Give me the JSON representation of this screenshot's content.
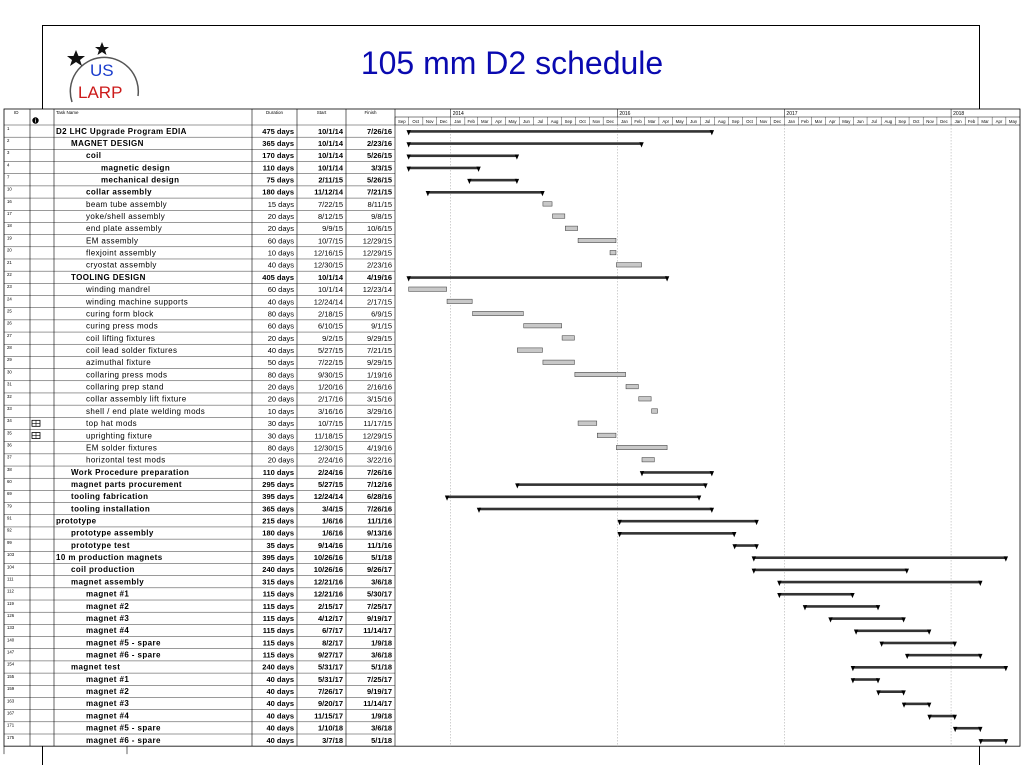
{
  "title": "105 mm D2 schedule",
  "logo": {
    "top": "US",
    "bottom": "LARP"
  },
  "headers": {
    "id": "ID",
    "info": "i",
    "name": "Task Name",
    "duration": "Duration",
    "start": "Start",
    "finish": "Finish"
  },
  "years": [
    "2014",
    "2016",
    "2017",
    "2018"
  ],
  "months": [
    "Sep",
    "Oct",
    "Nov",
    "Dec",
    "Jan",
    "Feb",
    "Mar",
    "Apr",
    "May",
    "Jun",
    "Jul",
    "Aug",
    "Sep",
    "Oct",
    "Nov",
    "Dec",
    "Jan",
    "Feb",
    "Mar",
    "Apr",
    "May",
    "Jun",
    "Jul",
    "Aug",
    "Sep",
    "Oct",
    "Nov",
    "Dec",
    "Jan",
    "Feb",
    "Mar",
    "Apr",
    "May",
    "Jun",
    "Jul",
    "Aug",
    "Sep",
    "Oct",
    "Nov",
    "Dec",
    "Jan",
    "Feb",
    "Mar",
    "Apr",
    "May"
  ],
  "colors": {
    "summary": "#333333",
    "task": "#c8c8c8",
    "title": "#0a0ab0",
    "logo_us": "#1a3ccc",
    "logo_larp": "#cc1a1a"
  },
  "tasks": [
    {
      "id": "1",
      "name": "D2 LHC Upgrade Program EDIA",
      "duration": "475 days",
      "start": "10/1/14",
      "finish": "7/26/16",
      "level": 0,
      "bold": true,
      "summary": true,
      "s": "2014-10-01",
      "f": "2016-07-26"
    },
    {
      "id": "2",
      "name": "MAGNET DESIGN",
      "duration": "365 days",
      "start": "10/1/14",
      "finish": "2/23/16",
      "level": 1,
      "bold": true,
      "summary": true,
      "s": "2014-10-01",
      "f": "2016-02-23"
    },
    {
      "id": "3",
      "name": "coil",
      "duration": "170 days",
      "start": "10/1/14",
      "finish": "5/26/15",
      "level": 2,
      "bold": true,
      "summary": true,
      "s": "2014-10-01",
      "f": "2015-05-26"
    },
    {
      "id": "4",
      "name": "magnetic design",
      "duration": "110 days",
      "start": "10/1/14",
      "finish": "3/3/15",
      "level": 3,
      "bold": true,
      "summary": true,
      "s": "2014-10-01",
      "f": "2015-03-03"
    },
    {
      "id": "7",
      "name": "mechanical design",
      "duration": "75 days",
      "start": "2/11/15",
      "finish": "5/26/15",
      "level": 3,
      "bold": true,
      "summary": true,
      "s": "2015-02-11",
      "f": "2015-05-26"
    },
    {
      "id": "10",
      "name": "collar assembly",
      "duration": "180 days",
      "start": "11/12/14",
      "finish": "7/21/15",
      "level": 2,
      "bold": true,
      "summary": true,
      "s": "2014-11-12",
      "f": "2015-07-21"
    },
    {
      "id": "16",
      "name": "beam tube assembly",
      "duration": "15 days",
      "start": "7/22/15",
      "finish": "8/11/15",
      "level": 2,
      "bold": false,
      "summary": false,
      "s": "2015-07-22",
      "f": "2015-08-11"
    },
    {
      "id": "17",
      "name": "yoke/shell assembly",
      "duration": "20 days",
      "start": "8/12/15",
      "finish": "9/8/15",
      "level": 2,
      "bold": false,
      "summary": false,
      "s": "2015-08-12",
      "f": "2015-09-08"
    },
    {
      "id": "18",
      "name": "end plate assembly",
      "duration": "20 days",
      "start": "9/9/15",
      "finish": "10/6/15",
      "level": 2,
      "bold": false,
      "summary": false,
      "s": "2015-09-09",
      "f": "2015-10-06"
    },
    {
      "id": "19",
      "name": "EM assembly",
      "duration": "60 days",
      "start": "10/7/15",
      "finish": "12/29/15",
      "level": 2,
      "bold": false,
      "summary": false,
      "s": "2015-10-07",
      "f": "2015-12-29"
    },
    {
      "id": "20",
      "name": "flexjoint assembly",
      "duration": "10 days",
      "start": "12/16/15",
      "finish": "12/29/15",
      "level": 2,
      "bold": false,
      "summary": false,
      "s": "2015-12-16",
      "f": "2015-12-29"
    },
    {
      "id": "21",
      "name": "cryostat assembly",
      "duration": "40 days",
      "start": "12/30/15",
      "finish": "2/23/16",
      "level": 2,
      "bold": false,
      "summary": false,
      "s": "2015-12-30",
      "f": "2016-02-23"
    },
    {
      "id": "22",
      "name": "TOOLING DESIGN",
      "duration": "405 days",
      "start": "10/1/14",
      "finish": "4/19/16",
      "level": 1,
      "bold": true,
      "summary": true,
      "s": "2014-10-01",
      "f": "2016-04-19"
    },
    {
      "id": "23",
      "name": "winding mandrel",
      "duration": "60 days",
      "start": "10/1/14",
      "finish": "12/23/14",
      "level": 2,
      "bold": false,
      "summary": false,
      "s": "2014-10-01",
      "f": "2014-12-23"
    },
    {
      "id": "24",
      "name": "winding machine supports",
      "duration": "40 days",
      "start": "12/24/14",
      "finish": "2/17/15",
      "level": 2,
      "bold": false,
      "summary": false,
      "s": "2014-12-24",
      "f": "2015-02-17"
    },
    {
      "id": "25",
      "name": "curing form block",
      "duration": "80 days",
      "start": "2/18/15",
      "finish": "6/9/15",
      "level": 2,
      "bold": false,
      "summary": false,
      "s": "2015-02-18",
      "f": "2015-06-09"
    },
    {
      "id": "26",
      "name": "curing press mods",
      "duration": "60 days",
      "start": "6/10/15",
      "finish": "9/1/15",
      "level": 2,
      "bold": false,
      "summary": false,
      "s": "2015-06-10",
      "f": "2015-09-01"
    },
    {
      "id": "27",
      "name": "coil lifting fixtures",
      "duration": "20 days",
      "start": "9/2/15",
      "finish": "9/29/15",
      "level": 2,
      "bold": false,
      "summary": false,
      "s": "2015-09-02",
      "f": "2015-09-29"
    },
    {
      "id": "28",
      "name": "coil lead solder fixtures",
      "duration": "40 days",
      "start": "5/27/15",
      "finish": "7/21/15",
      "level": 2,
      "bold": false,
      "summary": false,
      "s": "2015-05-27",
      "f": "2015-07-21"
    },
    {
      "id": "29",
      "name": "azimuthal fixture",
      "duration": "50 days",
      "start": "7/22/15",
      "finish": "9/29/15",
      "level": 2,
      "bold": false,
      "summary": false,
      "s": "2015-07-22",
      "f": "2015-09-29"
    },
    {
      "id": "30",
      "name": "collaring press mods",
      "duration": "80 days",
      "start": "9/30/15",
      "finish": "1/19/16",
      "level": 2,
      "bold": false,
      "summary": false,
      "s": "2015-09-30",
      "f": "2016-01-19"
    },
    {
      "id": "31",
      "name": "collaring prep stand",
      "duration": "20 days",
      "start": "1/20/16",
      "finish": "2/16/16",
      "level": 2,
      "bold": false,
      "summary": false,
      "s": "2016-01-20",
      "f": "2016-02-16"
    },
    {
      "id": "32",
      "name": "collar assembly lift fixture",
      "duration": "20 days",
      "start": "2/17/16",
      "finish": "3/15/16",
      "level": 2,
      "bold": false,
      "summary": false,
      "s": "2016-02-17",
      "f": "2016-03-15"
    },
    {
      "id": "33",
      "name": "shell / end plate welding mods",
      "duration": "10 days",
      "start": "3/16/16",
      "finish": "3/29/16",
      "level": 2,
      "bold": false,
      "summary": false,
      "s": "2016-03-16",
      "f": "2016-03-29"
    },
    {
      "id": "34",
      "name": "top hat mods",
      "duration": "30 days",
      "start": "10/7/15",
      "finish": "11/17/15",
      "level": 2,
      "bold": false,
      "summary": false,
      "icon": true,
      "s": "2015-10-07",
      "f": "2015-11-17"
    },
    {
      "id": "35",
      "name": "uprighting fixture",
      "duration": "30 days",
      "start": "11/18/15",
      "finish": "12/29/15",
      "level": 2,
      "bold": false,
      "summary": false,
      "icon": true,
      "s": "2015-11-18",
      "f": "2015-12-29"
    },
    {
      "id": "36",
      "name": "EM solder fixtures",
      "duration": "80 days",
      "start": "12/30/15",
      "finish": "4/19/16",
      "level": 2,
      "bold": false,
      "summary": false,
      "s": "2015-12-30",
      "f": "2016-04-19"
    },
    {
      "id": "37",
      "name": "horizontal test mods",
      "duration": "20 days",
      "start": "2/24/16",
      "finish": "3/22/16",
      "level": 2,
      "bold": false,
      "summary": false,
      "s": "2016-02-24",
      "f": "2016-03-22"
    },
    {
      "id": "38",
      "name": "Work Procedure preparation",
      "duration": "110 days",
      "start": "2/24/16",
      "finish": "7/26/16",
      "level": 1,
      "bold": true,
      "summary": true,
      "s": "2016-02-24",
      "f": "2016-07-26"
    },
    {
      "id": "60",
      "name": "magnet parts procurement",
      "duration": "295 days",
      "start": "5/27/15",
      "finish": "7/12/16",
      "level": 1,
      "bold": true,
      "summary": true,
      "s": "2015-05-27",
      "f": "2016-07-12"
    },
    {
      "id": "69",
      "name": "tooling fabrication",
      "duration": "395 days",
      "start": "12/24/14",
      "finish": "6/28/16",
      "level": 1,
      "bold": true,
      "summary": true,
      "s": "2014-12-24",
      "f": "2016-06-28"
    },
    {
      "id": "79",
      "name": "tooling installation",
      "duration": "365 days",
      "start": "3/4/15",
      "finish": "7/26/16",
      "level": 1,
      "bold": true,
      "summary": true,
      "s": "2015-03-04",
      "f": "2016-07-26"
    },
    {
      "id": "91",
      "name": "prototype",
      "duration": "215 days",
      "start": "1/6/16",
      "finish": "11/1/16",
      "level": 0,
      "bold": true,
      "summary": true,
      "s": "2016-01-06",
      "f": "2016-11-01"
    },
    {
      "id": "92",
      "name": "prototype assembly",
      "duration": "180 days",
      "start": "1/6/16",
      "finish": "9/13/16",
      "level": 1,
      "bold": true,
      "summary": true,
      "s": "2016-01-06",
      "f": "2016-09-13"
    },
    {
      "id": "99",
      "name": "prototype test",
      "duration": "35 days",
      "start": "9/14/16",
      "finish": "11/1/16",
      "level": 1,
      "bold": true,
      "summary": true,
      "s": "2016-09-14",
      "f": "2016-11-01"
    },
    {
      "id": "103",
      "name": "10 m production magnets",
      "duration": "395 days",
      "start": "10/26/16",
      "finish": "5/1/18",
      "level": 0,
      "bold": true,
      "summary": true,
      "s": "2016-10-26",
      "f": "2018-05-01"
    },
    {
      "id": "104",
      "name": "coil production",
      "duration": "240 days",
      "start": "10/26/16",
      "finish": "9/26/17",
      "level": 1,
      "bold": true,
      "summary": true,
      "s": "2016-10-26",
      "f": "2017-09-26"
    },
    {
      "id": "111",
      "name": "magnet assembly",
      "duration": "315 days",
      "start": "12/21/16",
      "finish": "3/6/18",
      "level": 1,
      "bold": true,
      "summary": true,
      "s": "2016-12-21",
      "f": "2018-03-06"
    },
    {
      "id": "112",
      "name": "magnet #1",
      "duration": "115 days",
      "start": "12/21/16",
      "finish": "5/30/17",
      "level": 2,
      "bold": true,
      "summary": true,
      "s": "2016-12-21",
      "f": "2017-05-30"
    },
    {
      "id": "119",
      "name": "magnet #2",
      "duration": "115 days",
      "start": "2/15/17",
      "finish": "7/25/17",
      "level": 2,
      "bold": true,
      "summary": true,
      "s": "2017-02-15",
      "f": "2017-07-25"
    },
    {
      "id": "126",
      "name": "magnet #3",
      "duration": "115 days",
      "start": "4/12/17",
      "finish": "9/19/17",
      "level": 2,
      "bold": true,
      "summary": true,
      "s": "2017-04-12",
      "f": "2017-09-19"
    },
    {
      "id": "133",
      "name": "magnet #4",
      "duration": "115 days",
      "start": "6/7/17",
      "finish": "11/14/17",
      "level": 2,
      "bold": true,
      "summary": true,
      "s": "2017-06-07",
      "f": "2017-11-14"
    },
    {
      "id": "140",
      "name": "magnet #5 - spare",
      "duration": "115 days",
      "start": "8/2/17",
      "finish": "1/9/18",
      "level": 2,
      "bold": true,
      "summary": true,
      "s": "2017-08-02",
      "f": "2018-01-09"
    },
    {
      "id": "147",
      "name": "magnet #6 - spare",
      "duration": "115 days",
      "start": "9/27/17",
      "finish": "3/6/18",
      "level": 2,
      "bold": true,
      "summary": true,
      "s": "2017-09-27",
      "f": "2018-03-06"
    },
    {
      "id": "154",
      "name": "magnet test",
      "duration": "240 days",
      "start": "5/31/17",
      "finish": "5/1/18",
      "level": 1,
      "bold": true,
      "summary": true,
      "s": "2017-05-31",
      "f": "2018-05-01"
    },
    {
      "id": "155",
      "name": "magnet #1",
      "duration": "40 days",
      "start": "5/31/17",
      "finish": "7/25/17",
      "level": 2,
      "bold": true,
      "summary": true,
      "s": "2017-05-31",
      "f": "2017-07-25"
    },
    {
      "id": "159",
      "name": "magnet #2",
      "duration": "40 days",
      "start": "7/26/17",
      "finish": "9/19/17",
      "level": 2,
      "bold": true,
      "summary": true,
      "s": "2017-07-26",
      "f": "2017-09-19"
    },
    {
      "id": "163",
      "name": "magnet #3",
      "duration": "40 days",
      "start": "9/20/17",
      "finish": "11/14/17",
      "level": 2,
      "bold": true,
      "summary": true,
      "s": "2017-09-20",
      "f": "2017-11-14"
    },
    {
      "id": "167",
      "name": "magnet #4",
      "duration": "40 days",
      "start": "11/15/17",
      "finish": "1/9/18",
      "level": 2,
      "bold": true,
      "summary": true,
      "s": "2017-11-15",
      "f": "2018-01-09"
    },
    {
      "id": "171",
      "name": "magnet #5 - spare",
      "duration": "40 days",
      "start": "1/10/18",
      "finish": "3/6/18",
      "level": 2,
      "bold": true,
      "summary": true,
      "s": "2018-01-10",
      "f": "2018-03-06"
    },
    {
      "id": "175",
      "name": "magnet #6 - spare",
      "duration": "40 days",
      "start": "3/7/18",
      "finish": "5/1/18",
      "level": 2,
      "bold": true,
      "summary": true,
      "s": "2018-03-07",
      "f": "2018-05-01"
    }
  ]
}
